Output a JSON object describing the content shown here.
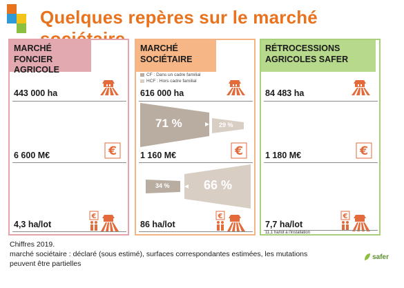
{
  "title": "Quelques repères sur le marché sociétaire",
  "panels": [
    {
      "heading": "Marché foncier agricole",
      "area": "443 000 ha",
      "value": "6 600 M€",
      "lot": "4,3 ha/lot"
    },
    {
      "heading": "Marché sociétaire",
      "legend": {
        "cf": "CF : Dans un cadre familial",
        "hcf": "HCF : Hors cadre familial"
      },
      "area": "616 000 ha",
      "area_split": {
        "cf_pct_label": "71 %",
        "hcf_pct_label": "29 %",
        "cf_pct": 71,
        "hcf_pct": 29
      },
      "value": "1 160 M€",
      "value_split": {
        "cf_pct_label": "34 %",
        "hcf_pct_label": "66 %",
        "cf_pct": 34,
        "hcf_pct": 66
      },
      "lot": "86 ha/lot"
    },
    {
      "heading": "Rétrocessions agricoles Safer",
      "area": "84 483 ha",
      "value": "1 180 M€",
      "lot": "7,7 ha/lot",
      "lot_note": "11,1 ha/lot à l'installation"
    }
  ],
  "footer": {
    "line1": "Chiffres 2019.",
    "line2": "marché sociétaire : déclaré (sous estimé), surfaces correspondantes estimées, les mutations peuvent être partielles"
  },
  "logo_text": "safer",
  "colors": {
    "accent": "#e8731f",
    "cf": "#b9ada1",
    "hcf": "#d8cec4",
    "icon": "#e36a3a"
  },
  "icons": [
    "farm-field-icon",
    "euro-icon",
    "euro-family-farm-icon"
  ]
}
